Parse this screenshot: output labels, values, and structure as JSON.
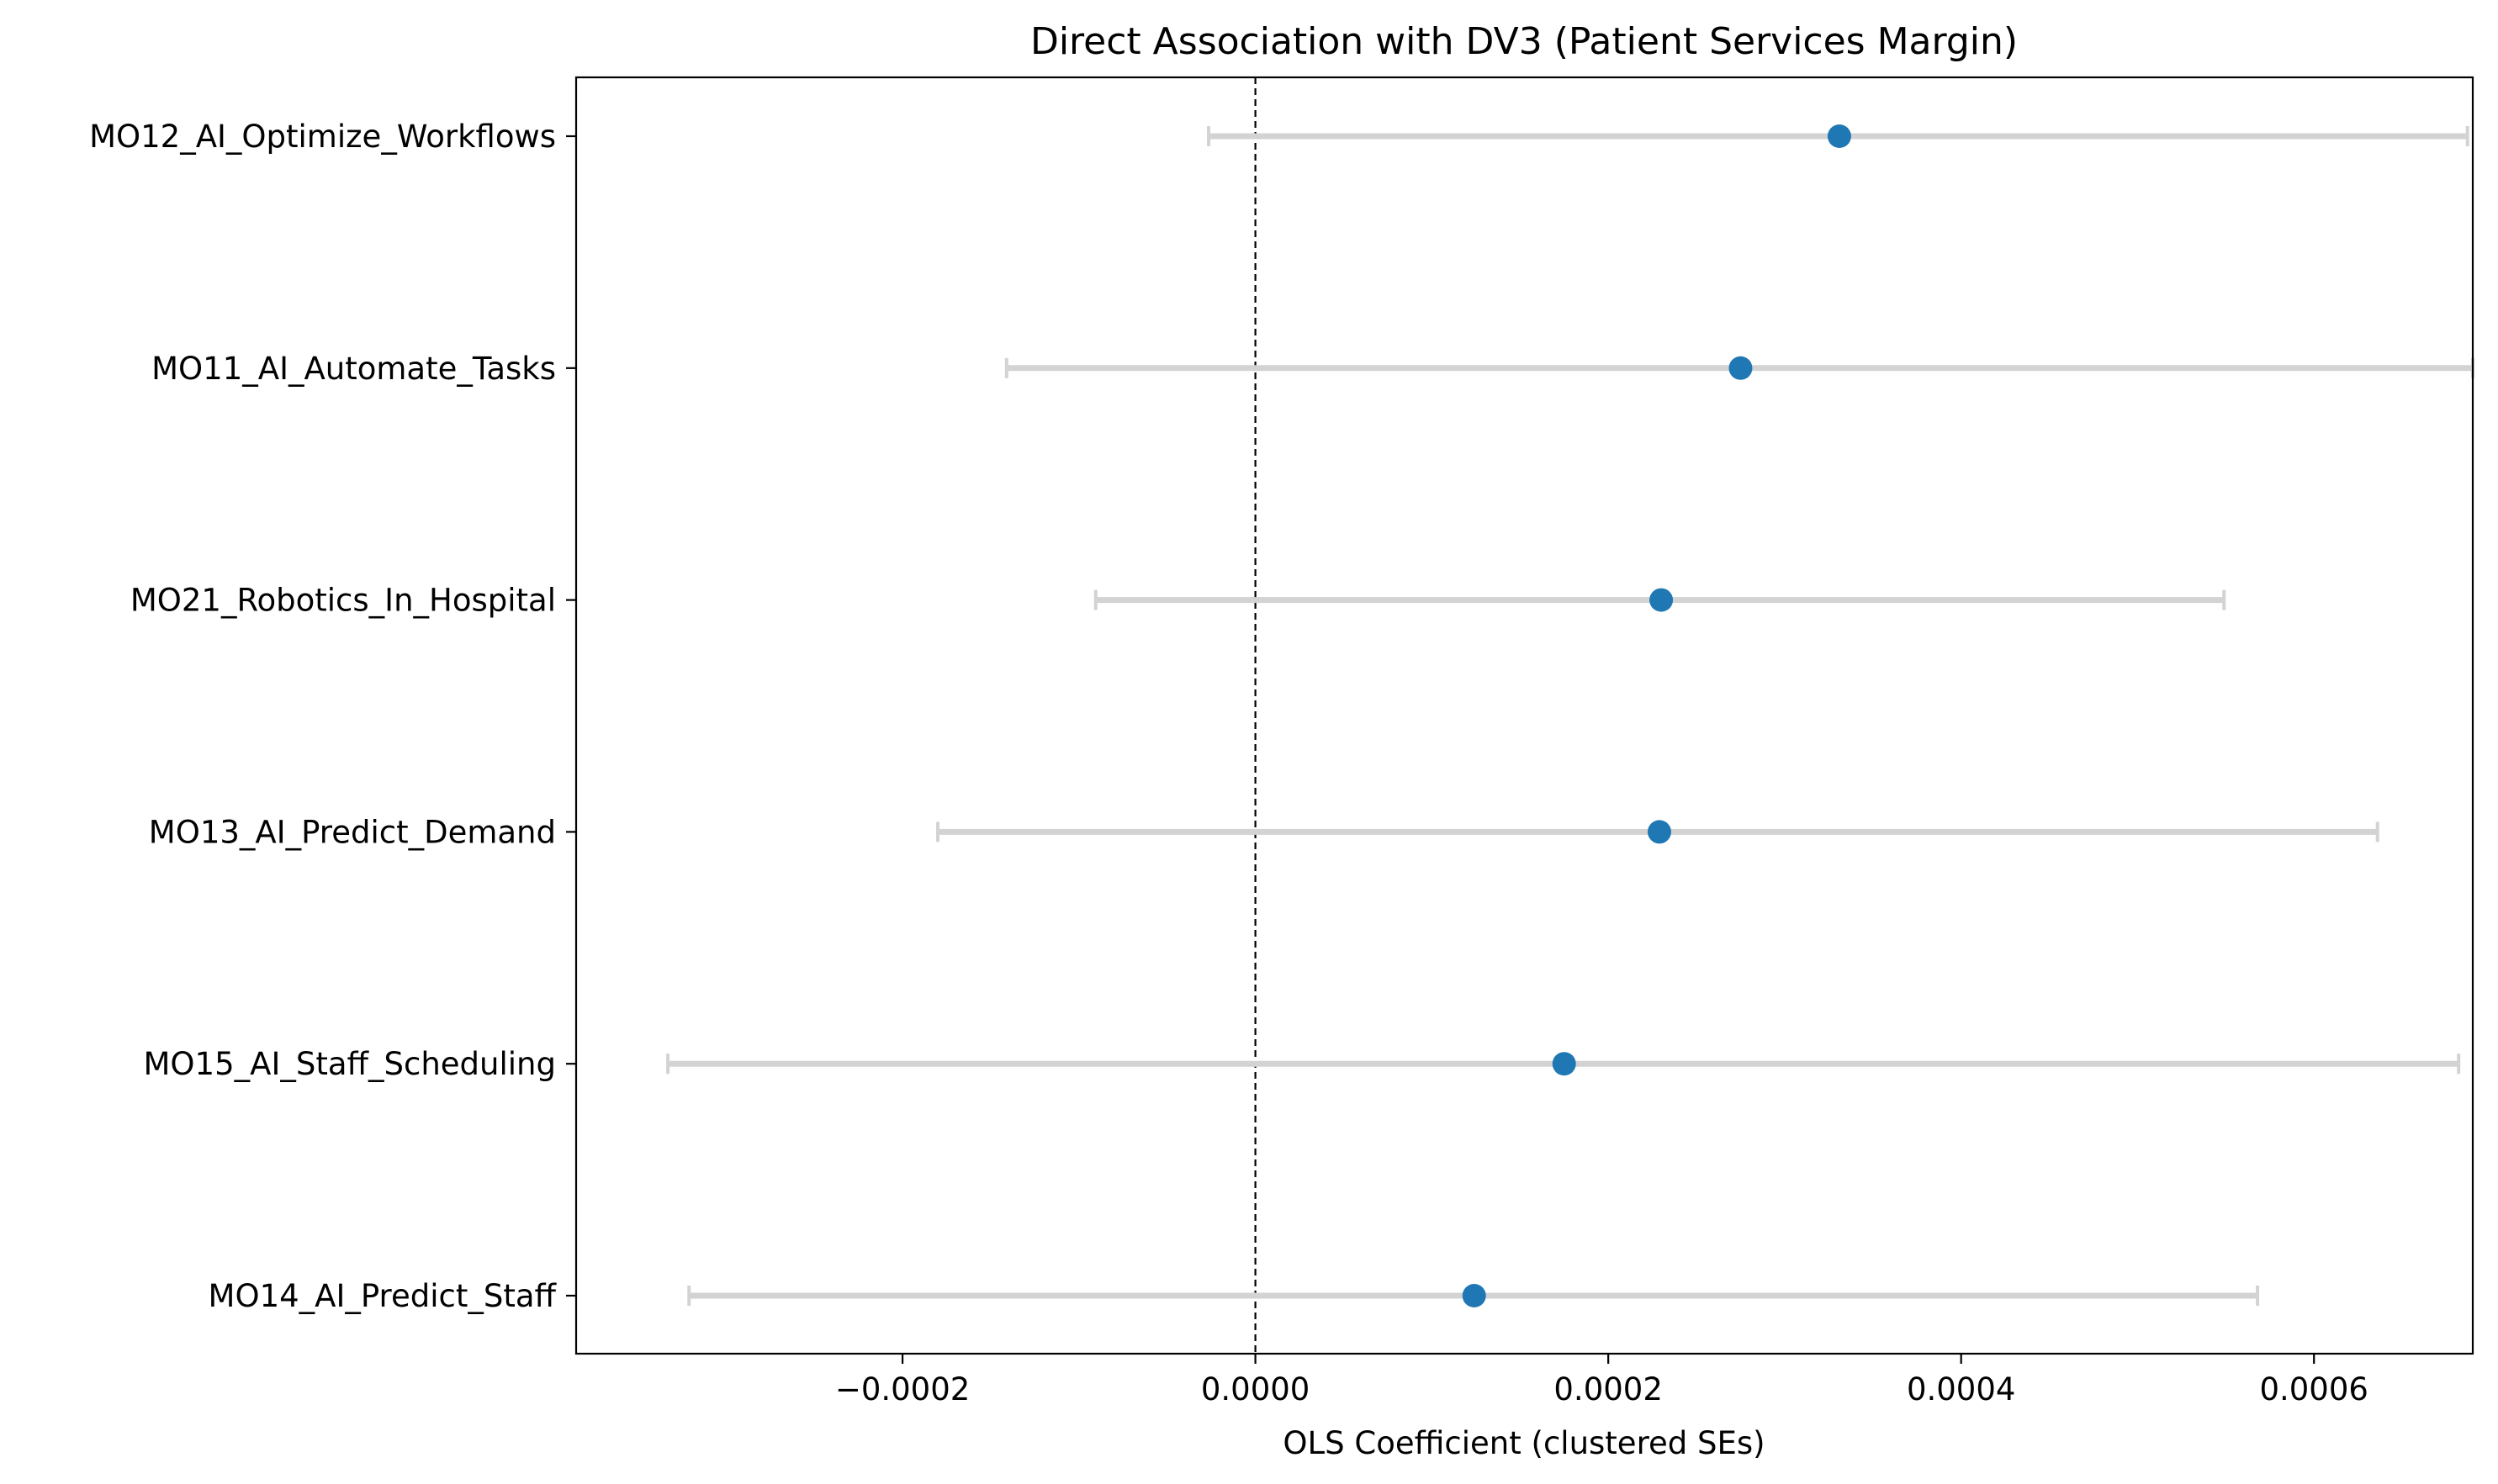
{
  "chart_data": {
    "type": "scatter",
    "title": "Direct Association with DV3 (Patient Services Margin)",
    "xlabel": "OLS Coefficient (clustered SEs)",
    "ylabel": "",
    "xlim": [
      -0.000385,
      0.00069
    ],
    "x_ticks": [
      -0.0002,
      0.0,
      0.0002,
      0.0004,
      0.0006
    ],
    "x_tick_labels": [
      "−0.0002",
      "0.0000",
      "0.0002",
      "0.0004",
      "0.0006"
    ],
    "reference_line_x": 0.0,
    "grid": false,
    "point_color": "#1f77b4",
    "error_bar_color": "#d3d3d3",
    "series": [
      {
        "label": "MO12_AI_Optimize_Workflows",
        "coef": 0.000331,
        "ci_low": -2.65e-05,
        "ci_high": 0.000687
      },
      {
        "label": "MO11_AI_Automate_Tasks",
        "coef": 0.000275,
        "ci_low": -0.000141,
        "ci_high": 0.00069
      },
      {
        "label": "MO21_Robotics_In_Hospital",
        "coef": 0.00023,
        "ci_low": -9.05e-05,
        "ci_high": 0.000549
      },
      {
        "label": "MO13_AI_Predict_Demand",
        "coef": 0.000229,
        "ci_low": -0.00018,
        "ci_high": 0.000636
      },
      {
        "label": "MO15_AI_Staff_Scheduling",
        "coef": 0.000175,
        "ci_low": -0.000333,
        "ci_high": 0.000682
      },
      {
        "label": "MO14_AI_Predict_Staff",
        "coef": 0.000124,
        "ci_low": -0.000321,
        "ci_high": 0.000568
      }
    ]
  }
}
